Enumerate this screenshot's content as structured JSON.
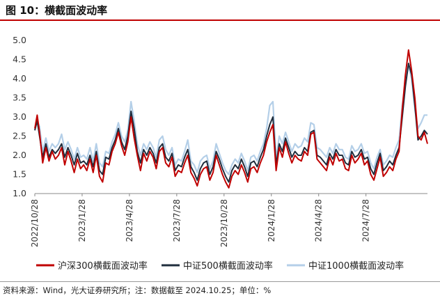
{
  "figure_title": "图 10：横截面波动率",
  "source_note": "资料来源：Wind，光大证券研究所；注：数据截至 2024.10.25；单位：%",
  "chart_data": {
    "type": "line",
    "title": "",
    "xlabel": "",
    "ylabel": "",
    "ylim": [
      1.0,
      5.0
    ],
    "yticks": [
      "1.0",
      "1.5",
      "2.0",
      "2.5",
      "3.0",
      "3.5",
      "4.0",
      "4.5",
      "5.0"
    ],
    "xticks": [
      "2022/10/28",
      "2023/1/28",
      "2023/4/28",
      "2023/7/28",
      "2023/10/28",
      "2024/1/28",
      "2024/4/28",
      "2024/7/28"
    ],
    "xlim": [
      0,
      24.9
    ],
    "grid": false,
    "legend_position": "bottom",
    "series": [
      {
        "name": "沪深300横截面波动率",
        "color": "#c00000",
        "x": [
          0,
          0.15,
          0.3,
          0.5,
          0.7,
          0.9,
          1.1,
          1.3,
          1.5,
          1.7,
          1.9,
          2.1,
          2.3,
          2.5,
          2.7,
          2.9,
          3.1,
          3.3,
          3.5,
          3.7,
          3.9,
          4.1,
          4.3,
          4.5,
          4.7,
          4.9,
          5.1,
          5.3,
          5.5,
          5.7,
          5.9,
          6.1,
          6.3,
          6.5,
          6.7,
          6.9,
          7.1,
          7.3,
          7.5,
          7.7,
          7.9,
          8.1,
          8.3,
          8.5,
          8.7,
          8.9,
          9.1,
          9.3,
          9.5,
          9.7,
          9.9,
          10.1,
          10.3,
          10.5,
          10.7,
          10.9,
          11.1,
          11.3,
          11.5,
          11.7,
          11.9,
          12.1,
          12.3,
          12.5,
          12.7,
          12.9,
          13.1,
          13.3,
          13.5,
          13.7,
          13.9,
          14.1,
          14.3,
          14.5,
          14.7,
          14.9,
          15.1,
          15.3,
          15.5,
          15.7,
          15.9,
          16.1,
          16.3,
          16.5,
          16.7,
          16.9,
          17.1,
          17.3,
          17.5,
          17.7,
          17.9,
          18.1,
          18.3,
          18.5,
          18.7,
          18.9,
          19.1,
          19.3,
          19.5,
          19.7,
          19.9,
          20.1,
          20.3,
          20.5,
          20.7,
          20.9,
          21.1,
          21.3,
          21.5,
          21.7,
          21.9,
          22.1,
          22.3,
          22.5,
          22.7,
          22.9,
          23.1,
          23.3,
          23.5,
          23.7,
          23.9,
          24.1,
          24.3,
          24.5,
          24.7,
          24.9
        ],
        "values": [
          2.7,
          3.05,
          2.6,
          1.8,
          2.2,
          1.85,
          2.1,
          1.9,
          2.0,
          2.2,
          1.75,
          2.1,
          1.85,
          1.55,
          1.9,
          1.65,
          1.75,
          1.6,
          1.9,
          1.55,
          2.0,
          1.45,
          1.3,
          1.8,
          1.75,
          2.1,
          2.3,
          2.6,
          2.25,
          2.0,
          2.35,
          3.0,
          2.45,
          2.0,
          1.6,
          2.05,
          1.85,
          2.1,
          1.95,
          1.65,
          2.1,
          2.2,
          1.8,
          1.7,
          1.95,
          1.45,
          1.6,
          1.55,
          1.8,
          2.0,
          1.55,
          1.4,
          1.2,
          1.5,
          1.65,
          1.7,
          1.35,
          1.55,
          2.0,
          1.75,
          1.5,
          1.3,
          1.15,
          1.45,
          1.6,
          1.5,
          1.75,
          1.55,
          1.3,
          1.65,
          1.7,
          1.55,
          1.8,
          2.0,
          2.35,
          2.6,
          2.8,
          1.6,
          2.2,
          1.95,
          2.35,
          2.05,
          1.8,
          2.0,
          1.9,
          1.85,
          2.1,
          2.0,
          2.55,
          2.6,
          1.9,
          1.8,
          1.7,
          1.6,
          1.95,
          1.75,
          2.05,
          1.85,
          1.9,
          1.65,
          1.6,
          2.0,
          1.8,
          1.9,
          2.05,
          1.75,
          1.85,
          1.5,
          1.35,
          1.65,
          1.95,
          1.45,
          1.55,
          1.7,
          1.6,
          1.9,
          2.1,
          3.2,
          4.1,
          4.75,
          4.2,
          3.5,
          2.5,
          2.4,
          2.6,
          2.3
        ]
      },
      {
        "name": "中证500横截面波动率",
        "color": "#1f2d3d",
        "x": [
          0,
          0.15,
          0.3,
          0.5,
          0.7,
          0.9,
          1.1,
          1.3,
          1.5,
          1.7,
          1.9,
          2.1,
          2.3,
          2.5,
          2.7,
          2.9,
          3.1,
          3.3,
          3.5,
          3.7,
          3.9,
          4.1,
          4.3,
          4.5,
          4.7,
          4.9,
          5.1,
          5.3,
          5.5,
          5.7,
          5.9,
          6.1,
          6.3,
          6.5,
          6.7,
          6.9,
          7.1,
          7.3,
          7.5,
          7.7,
          7.9,
          8.1,
          8.3,
          8.5,
          8.7,
          8.9,
          9.1,
          9.3,
          9.5,
          9.7,
          9.9,
          10.1,
          10.3,
          10.5,
          10.7,
          10.9,
          11.1,
          11.3,
          11.5,
          11.7,
          11.9,
          12.1,
          12.3,
          12.5,
          12.7,
          12.9,
          13.1,
          13.3,
          13.5,
          13.7,
          13.9,
          14.1,
          14.3,
          14.5,
          14.7,
          14.9,
          15.1,
          15.3,
          15.5,
          15.7,
          15.9,
          16.1,
          16.3,
          16.5,
          16.7,
          16.9,
          17.1,
          17.3,
          17.5,
          17.7,
          17.9,
          18.1,
          18.3,
          18.5,
          18.7,
          18.9,
          19.1,
          19.3,
          19.5,
          19.7,
          19.9,
          20.1,
          20.3,
          20.5,
          20.7,
          20.9,
          21.1,
          21.3,
          21.5,
          21.7,
          21.9,
          22.1,
          22.3,
          22.5,
          22.7,
          22.9,
          23.1,
          23.3,
          23.5,
          23.7,
          23.9,
          24.1,
          24.3,
          24.5,
          24.7,
          24.9
        ],
        "values": [
          2.65,
          2.9,
          2.5,
          1.95,
          2.3,
          1.95,
          2.15,
          2.05,
          2.15,
          2.3,
          1.95,
          2.2,
          2.0,
          1.75,
          2.05,
          1.8,
          1.85,
          1.75,
          2.0,
          1.7,
          2.1,
          1.6,
          1.5,
          1.95,
          1.9,
          2.2,
          2.4,
          2.7,
          2.35,
          2.15,
          2.5,
          3.15,
          2.7,
          2.1,
          1.8,
          2.15,
          2.0,
          2.2,
          2.05,
          1.8,
          2.2,
          2.3,
          1.95,
          1.85,
          2.05,
          1.6,
          1.75,
          1.7,
          1.95,
          2.15,
          1.7,
          1.55,
          1.35,
          1.65,
          1.8,
          1.85,
          1.5,
          1.7,
          2.1,
          1.9,
          1.65,
          1.45,
          1.3,
          1.6,
          1.75,
          1.65,
          1.9,
          1.7,
          1.45,
          1.8,
          1.85,
          1.7,
          1.95,
          2.15,
          2.5,
          2.8,
          3.0,
          1.75,
          2.3,
          2.1,
          2.45,
          2.2,
          1.95,
          2.1,
          2.0,
          2.0,
          2.2,
          2.1,
          2.6,
          2.65,
          2.0,
          1.95,
          1.85,
          1.75,
          2.05,
          1.9,
          2.15,
          2.0,
          2.0,
          1.8,
          1.75,
          2.1,
          1.95,
          2.0,
          2.15,
          1.9,
          1.95,
          1.65,
          1.5,
          1.8,
          2.05,
          1.6,
          1.7,
          1.85,
          1.75,
          2.0,
          2.2,
          3.0,
          3.8,
          4.4,
          4.1,
          3.3,
          2.4,
          2.5,
          2.65,
          2.55
        ]
      },
      {
        "name": "中证1000横截面波动率",
        "color": "#b4cfe8",
        "x": [
          0,
          0.15,
          0.3,
          0.5,
          0.7,
          0.9,
          1.1,
          1.3,
          1.5,
          1.7,
          1.9,
          2.1,
          2.3,
          2.5,
          2.7,
          2.9,
          3.1,
          3.3,
          3.5,
          3.7,
          3.9,
          4.1,
          4.3,
          4.5,
          4.7,
          4.9,
          5.1,
          5.3,
          5.5,
          5.7,
          5.9,
          6.1,
          6.3,
          6.5,
          6.7,
          6.9,
          7.1,
          7.3,
          7.5,
          7.7,
          7.9,
          8.1,
          8.3,
          8.5,
          8.7,
          8.9,
          9.1,
          9.3,
          9.5,
          9.7,
          9.9,
          10.1,
          10.3,
          10.5,
          10.7,
          10.9,
          11.1,
          11.3,
          11.5,
          11.7,
          11.9,
          12.1,
          12.3,
          12.5,
          12.7,
          12.9,
          13.1,
          13.3,
          13.5,
          13.7,
          13.9,
          14.1,
          14.3,
          14.5,
          14.7,
          14.9,
          15.1,
          15.3,
          15.5,
          15.7,
          15.9,
          16.1,
          16.3,
          16.5,
          16.7,
          16.9,
          17.1,
          17.3,
          17.5,
          17.7,
          17.9,
          18.1,
          18.3,
          18.5,
          18.7,
          18.9,
          19.1,
          19.3,
          19.5,
          19.7,
          19.9,
          20.1,
          20.3,
          20.5,
          20.7,
          20.9,
          21.1,
          21.3,
          21.5,
          21.7,
          21.9,
          22.1,
          22.3,
          22.5,
          22.7,
          22.9,
          23.1,
          23.3,
          23.5,
          23.7,
          23.9,
          24.1,
          24.3,
          24.5,
          24.7,
          24.9
        ],
        "values": [
          2.7,
          2.9,
          2.75,
          2.1,
          2.45,
          2.1,
          2.3,
          2.2,
          2.3,
          2.55,
          2.15,
          2.35,
          2.15,
          1.9,
          2.2,
          1.95,
          2.0,
          1.9,
          2.2,
          1.85,
          2.3,
          1.8,
          1.7,
          2.1,
          2.05,
          2.35,
          2.55,
          2.85,
          2.5,
          2.35,
          2.65,
          3.4,
          2.9,
          2.3,
          2.0,
          2.3,
          2.15,
          2.35,
          2.2,
          1.95,
          2.4,
          2.5,
          2.15,
          2.0,
          2.2,
          1.75,
          1.9,
          1.85,
          2.1,
          2.4,
          1.85,
          1.75,
          1.55,
          1.85,
          1.95,
          2.0,
          1.65,
          1.85,
          2.3,
          2.05,
          1.8,
          1.6,
          1.5,
          1.75,
          1.9,
          1.8,
          2.05,
          1.85,
          1.6,
          1.95,
          2.0,
          1.85,
          2.1,
          2.3,
          2.7,
          3.3,
          3.4,
          1.9,
          2.5,
          2.3,
          2.6,
          2.35,
          2.1,
          2.3,
          2.2,
          2.25,
          2.45,
          2.35,
          2.85,
          2.8,
          2.2,
          2.15,
          2.05,
          1.95,
          2.2,
          2.05,
          2.3,
          2.15,
          2.15,
          1.95,
          1.9,
          2.25,
          2.1,
          2.15,
          2.3,
          2.05,
          2.1,
          1.8,
          1.65,
          1.95,
          2.15,
          1.75,
          1.85,
          2.0,
          1.95,
          2.2,
          2.4,
          3.3,
          3.9,
          4.35,
          4.0,
          3.2,
          2.7,
          2.85,
          3.05,
          3.05
        ]
      }
    ]
  }
}
